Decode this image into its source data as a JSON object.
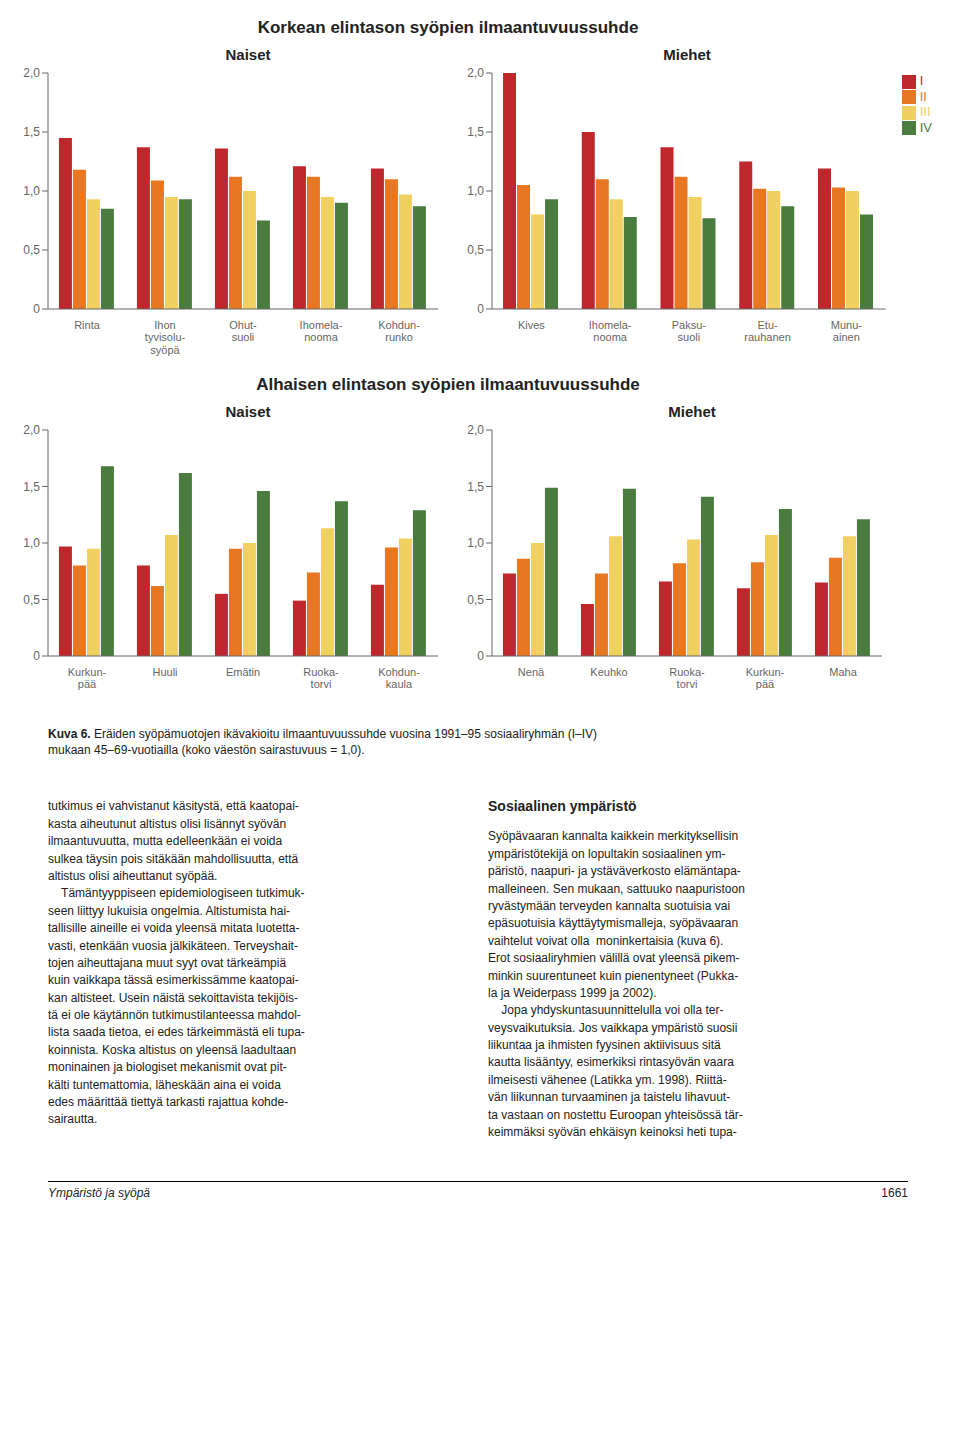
{
  "chart_data": [
    {
      "type": "bar",
      "title": "Naiset",
      "categories": [
        "Rinta",
        "Ihon\ntyvisolu-\nsyöpä",
        "Ohut-\nsuoli",
        "Ihomela-\nnooma",
        "Kohdun-\nrunko"
      ],
      "series": [
        {
          "name": "I",
          "color": "#c0272d",
          "values": [
            1.45,
            1.37,
            1.36,
            1.21,
            1.19
          ]
        },
        {
          "name": "II",
          "color": "#e87722",
          "values": [
            1.18,
            1.09,
            1.12,
            1.12,
            1.1
          ]
        },
        {
          "name": "III",
          "color": "#f0d060",
          "values": [
            0.93,
            0.95,
            1.0,
            0.95,
            0.97
          ]
        },
        {
          "name": "IV",
          "color": "#4a7c3f",
          "values": [
            0.85,
            0.93,
            0.75,
            0.9,
            0.87
          ]
        }
      ],
      "ylim": [
        0,
        2.0
      ],
      "yticks": [
        0,
        {
          "value": 0.5,
          "label": "0,5"
        },
        {
          "value": 1.0,
          "label": "1,0"
        },
        {
          "value": 1.5,
          "label": "1,5"
        },
        {
          "value": 2.0,
          "label": "2,0"
        }
      ],
      "grid": false
    },
    {
      "type": "bar",
      "title": "Miehet",
      "categories": [
        "Kives",
        "Ihomela-\nnooma",
        "Paksu-\nsuoli",
        "Etu-\nrauhanen",
        "Munu-\nainen"
      ],
      "series": [
        {
          "name": "I",
          "color": "#c0272d",
          "values": [
            2.0,
            1.5,
            1.37,
            1.25,
            1.19
          ]
        },
        {
          "name": "II",
          "color": "#e87722",
          "values": [
            1.05,
            1.1,
            1.12,
            1.02,
            1.03
          ]
        },
        {
          "name": "III",
          "color": "#f0d060",
          "values": [
            0.8,
            0.93,
            0.95,
            1.0,
            1.0
          ]
        },
        {
          "name": "IV",
          "color": "#4a7c3f",
          "values": [
            0.93,
            0.78,
            0.77,
            0.87,
            0.8
          ]
        }
      ],
      "ylim": [
        0,
        2.0
      ],
      "yticks": [
        0,
        {
          "value": 0.5,
          "label": "0,5"
        },
        {
          "value": 1.0,
          "label": "1,0"
        },
        {
          "value": 1.5,
          "label": "1,5"
        },
        {
          "value": 2.0,
          "label": "2,0"
        }
      ],
      "grid": false,
      "legend": "right"
    },
    {
      "type": "bar",
      "title": "Naiset",
      "categories": [
        "Kurkun-\npää",
        "Huuli",
        "Emätin",
        "Ruoka-\ntorvi",
        "Kohdun-\nkaula"
      ],
      "series": [
        {
          "name": "I",
          "color": "#c0272d",
          "values": [
            0.97,
            0.8,
            0.55,
            0.49,
            0.63
          ]
        },
        {
          "name": "II",
          "color": "#e87722",
          "values": [
            0.8,
            0.62,
            0.95,
            0.74,
            0.96
          ]
        },
        {
          "name": "III",
          "color": "#f0d060",
          "values": [
            0.95,
            1.07,
            1.0,
            1.13,
            1.04
          ]
        },
        {
          "name": "IV",
          "color": "#4a7c3f",
          "values": [
            1.68,
            1.62,
            1.46,
            1.37,
            1.29
          ]
        }
      ],
      "ylim": [
        0,
        2.0
      ],
      "yticks": [
        0,
        {
          "value": 0.5,
          "label": "0,5"
        },
        {
          "value": 1.0,
          "label": "1,0"
        },
        {
          "value": 1.5,
          "label": "1,5"
        },
        {
          "value": 2.0,
          "label": "2,0"
        }
      ],
      "grid": false
    },
    {
      "type": "bar",
      "title": "Miehet",
      "categories": [
        "Nenä",
        "Keuhko",
        "Ruoka-\ntorvi",
        "Kurkun-\npää",
        "Maha"
      ],
      "series": [
        {
          "name": "I",
          "color": "#c0272d",
          "values": [
            0.73,
            0.46,
            0.66,
            0.6,
            0.65
          ]
        },
        {
          "name": "II",
          "color": "#e87722",
          "values": [
            0.86,
            0.73,
            0.82,
            0.83,
            0.87
          ]
        },
        {
          "name": "III",
          "color": "#f0d060",
          "values": [
            1.0,
            1.06,
            1.03,
            1.07,
            1.06
          ]
        },
        {
          "name": "IV",
          "color": "#4a7c3f",
          "values": [
            1.49,
            1.48,
            1.41,
            1.3,
            1.21
          ]
        }
      ],
      "ylim": [
        0,
        2.0
      ],
      "yticks": [
        0,
        {
          "value": 0.5,
          "label": "0,5"
        },
        {
          "value": 1.0,
          "label": "1,0"
        },
        {
          "value": 1.5,
          "label": "1,5"
        },
        {
          "value": 2.0,
          "label": "2,0"
        }
      ],
      "grid": false
    }
  ],
  "annotations": [
    "Korkean elintason syöpien ilmaantuvuussuhde",
    "Alhaisen elintason syöpien ilmaantuvuussuhde",
    "Kuva 6.",
    " Eräiden syöpämuotojen ikävakioitu ilmaantuvuussuhde vuosina 1991–95 sosiaaliryhmän (I–IV)\nmukaan 45–69-vuotiailla (koko väestön sairastuvuus = 1,0).",
    "tutkimus ei vahvistanut käsitystä, että kaatopai-\nkasta aiheutunut altistus olisi lisännyt syövän\nilmaantuvuutta, mutta edelleenkään ei voida\nsulkea täysin pois sitäkään mahdollisuutta, että\naltistus olisi aiheuttanut syöpää.\n    Tämäntyyppiseen epidemiologiseen tutkimuk-\nseen liittyy lukuisia ongelmia. Altistumista hai-\ntallisille aineille ei voida yleensä mitata luotetta-\nvasti, etenkään vuosia jälkikäteen. Terveyshait-\ntojen aiheuttajana muut syyt ovat tärkeämpiä\nkuin vaikkapa tässä esimerkissämme kaatopai-\nkan altisteet. Usein näistä sekoittavista tekijöis-\ntä ei ole käytännön tutkimustilanteessa mahdol-\nlista saada tietoa, ei edes tärkeimmästä eli tupa-\nkoinnista. Koska altistus on yleensä laadultaan\nmoninainen ja biologiset mekanismit ovat pit-\nkälti tuntemattomia, läheskään aina ei voida\nedes määrittää tiettyä tarkasti rajattua kohde-\nsairautta.",
    "Sosiaalinen ympäristö",
    "Syöpävaaran kannalta kaikkein merkityksellisin\nympäristötekijä on lopultakin sosiaalinen ym-\npäristö, naapuri- ja ystäväverkosto elämäntapa-\nmalleineen. Sen mukaan, sattuuko naapuristoon\nryvästymään terveyden kannalta suotuisia vai\nepäsuotuisia käyttäytymismalleja, syöpävaaran\nvaihtelut voivat olla  moninkertaisia (kuva 6).\nErot sosiaaliryhmien välillä ovat yleensä pikem-\nminkin suurentuneet kuin pienentyneet (Pukka-\nla ja Weiderpass 1999 ja 2002).\n    Jopa yhdyskuntasuunnittelulla voi olla ter-\nveysvaikutuksia. Jos vaikkapa ympäristö suosii\nliikuntaa ja ihmisten fyysinen aktiivisuus sitä\nkautta lisääntyy, esimerkiksi rintasyövän vaara\nilmeisesti vähenee (Latikka ym. 1998). Riittä-\nvän liikunnan turvaaminen ja taistelu lihavuut-\nta vastaan on nostettu Euroopan yhteisössä tär-\nkeimmäksi syövän ehkäisyn keinoksi heti tupa-",
    "Ympäristö ja syöpä",
    "1661"
  ]
}
